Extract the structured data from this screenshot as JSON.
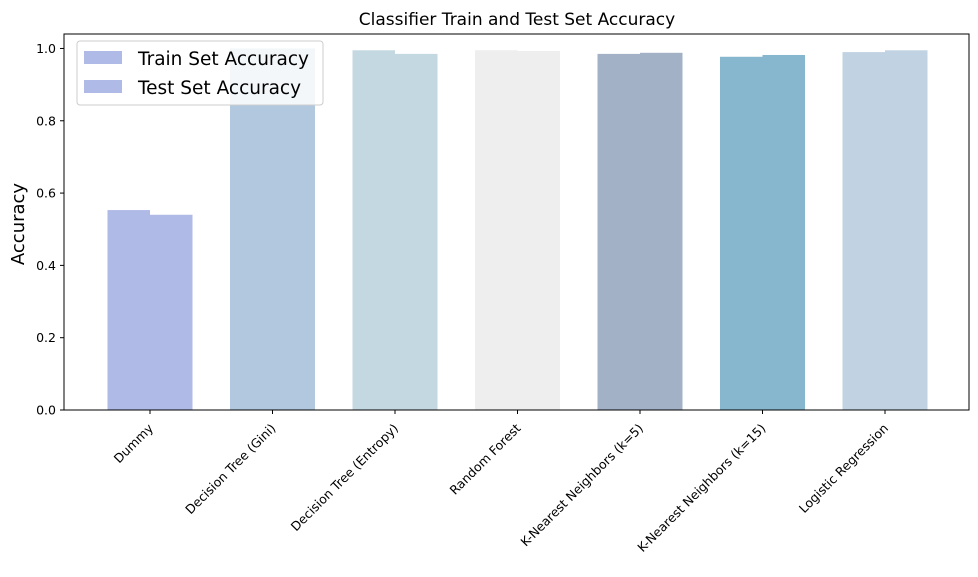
{
  "chart_data": {
    "type": "bar",
    "title": "Classifier Train and Test Set Accuracy",
    "xlabel": "",
    "ylabel": "Accuracy",
    "ylim": [
      0,
      1.04
    ],
    "yticks": [
      "0.0",
      "0.2",
      "0.4",
      "0.6",
      "0.8",
      "1.0"
    ],
    "categories": [
      "Dummy",
      "Decision Tree (Gini)",
      "Decision Tree (Entropy)",
      "Random Forest",
      "K-Nearest Neighbors (k=5)",
      "K-Nearest Neighbors (k=15)",
      "Logistic Regression"
    ],
    "series": [
      {
        "name": "Train Set Accuracy",
        "values": [
          0.553,
          1.0,
          0.995,
          0.995,
          0.985,
          0.977,
          0.99
        ]
      },
      {
        "name": "Test Set Accuracy",
        "values": [
          0.54,
          1.0,
          0.985,
          0.993,
          0.988,
          0.982,
          0.995
        ]
      }
    ],
    "bar_colors": [
      "#b0bae6",
      "#b1c8de",
      "#c4d8e2",
      "#eeeeee",
      "#a2b1c6",
      "#87b7cf",
      "#c1d3e2"
    ],
    "legend": {
      "position": "upper-left",
      "color": "#b0bae6"
    },
    "grid": false
  }
}
